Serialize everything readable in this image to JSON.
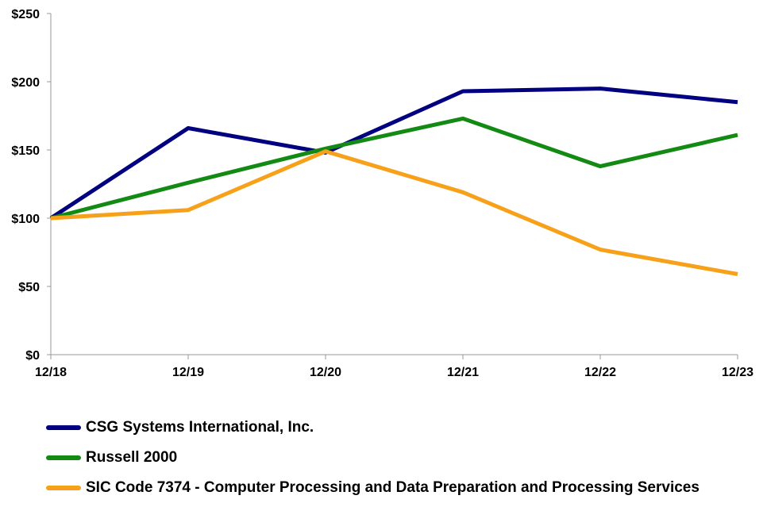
{
  "chart_data": {
    "type": "line",
    "title": "",
    "xlabel": "",
    "ylabel": "",
    "categories": [
      "12/18",
      "12/19",
      "12/20",
      "12/21",
      "12/22",
      "12/23"
    ],
    "ylim": [
      0,
      250
    ],
    "yticks": [
      0,
      50,
      100,
      150,
      200,
      250
    ],
    "ytick_labels": [
      "$0",
      "$50",
      "$100",
      "$150",
      "$200",
      "$250"
    ],
    "grid": false,
    "legend_position": "bottom-left",
    "series": [
      {
        "name": "CSG Systems International, Inc.",
        "color": "#000080",
        "values": [
          100,
          166,
          148,
          193,
          195,
          185
        ]
      },
      {
        "name": "Russell 2000",
        "color": "#138a13",
        "values": [
          100,
          126,
          151,
          173,
          138,
          161
        ]
      },
      {
        "name": "SIC Code 7374 - Computer Processing and Data Preparation and Processing Services",
        "color": "#f7a11a",
        "values": [
          100,
          106,
          149,
          119,
          77,
          59
        ]
      }
    ]
  }
}
